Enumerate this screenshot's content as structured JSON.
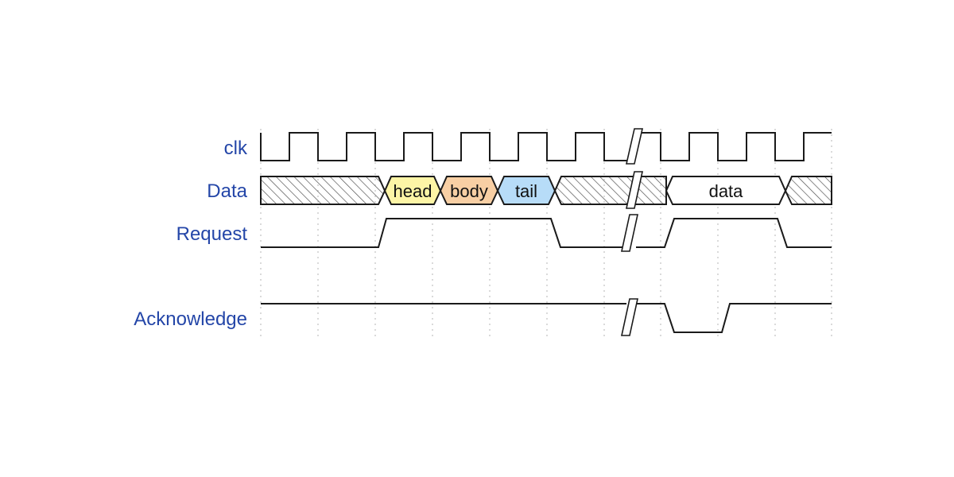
{
  "signals": [
    {
      "id": "clk",
      "label": "clk"
    },
    {
      "id": "data",
      "label": "Data"
    },
    {
      "id": "request",
      "label": "Request"
    },
    {
      "id": "acknowledge",
      "label": "Acknowledge"
    }
  ],
  "data_fields": [
    {
      "id": "head",
      "label": "head",
      "color": "#fdf5a6"
    },
    {
      "id": "body",
      "label": "body",
      "color": "#f8cfa4"
    },
    {
      "id": "tail",
      "label": "tail",
      "color": "#b7dcf8"
    },
    {
      "id": "data",
      "label": "data",
      "color": "#ffffff"
    }
  ],
  "colors": {
    "label_text": "#2446a8",
    "wave_stroke": "#1a1a1a",
    "grid_stroke": "#b5b5b5",
    "hatch_stroke": "#555555"
  },
  "break_marker": "double-slash"
}
